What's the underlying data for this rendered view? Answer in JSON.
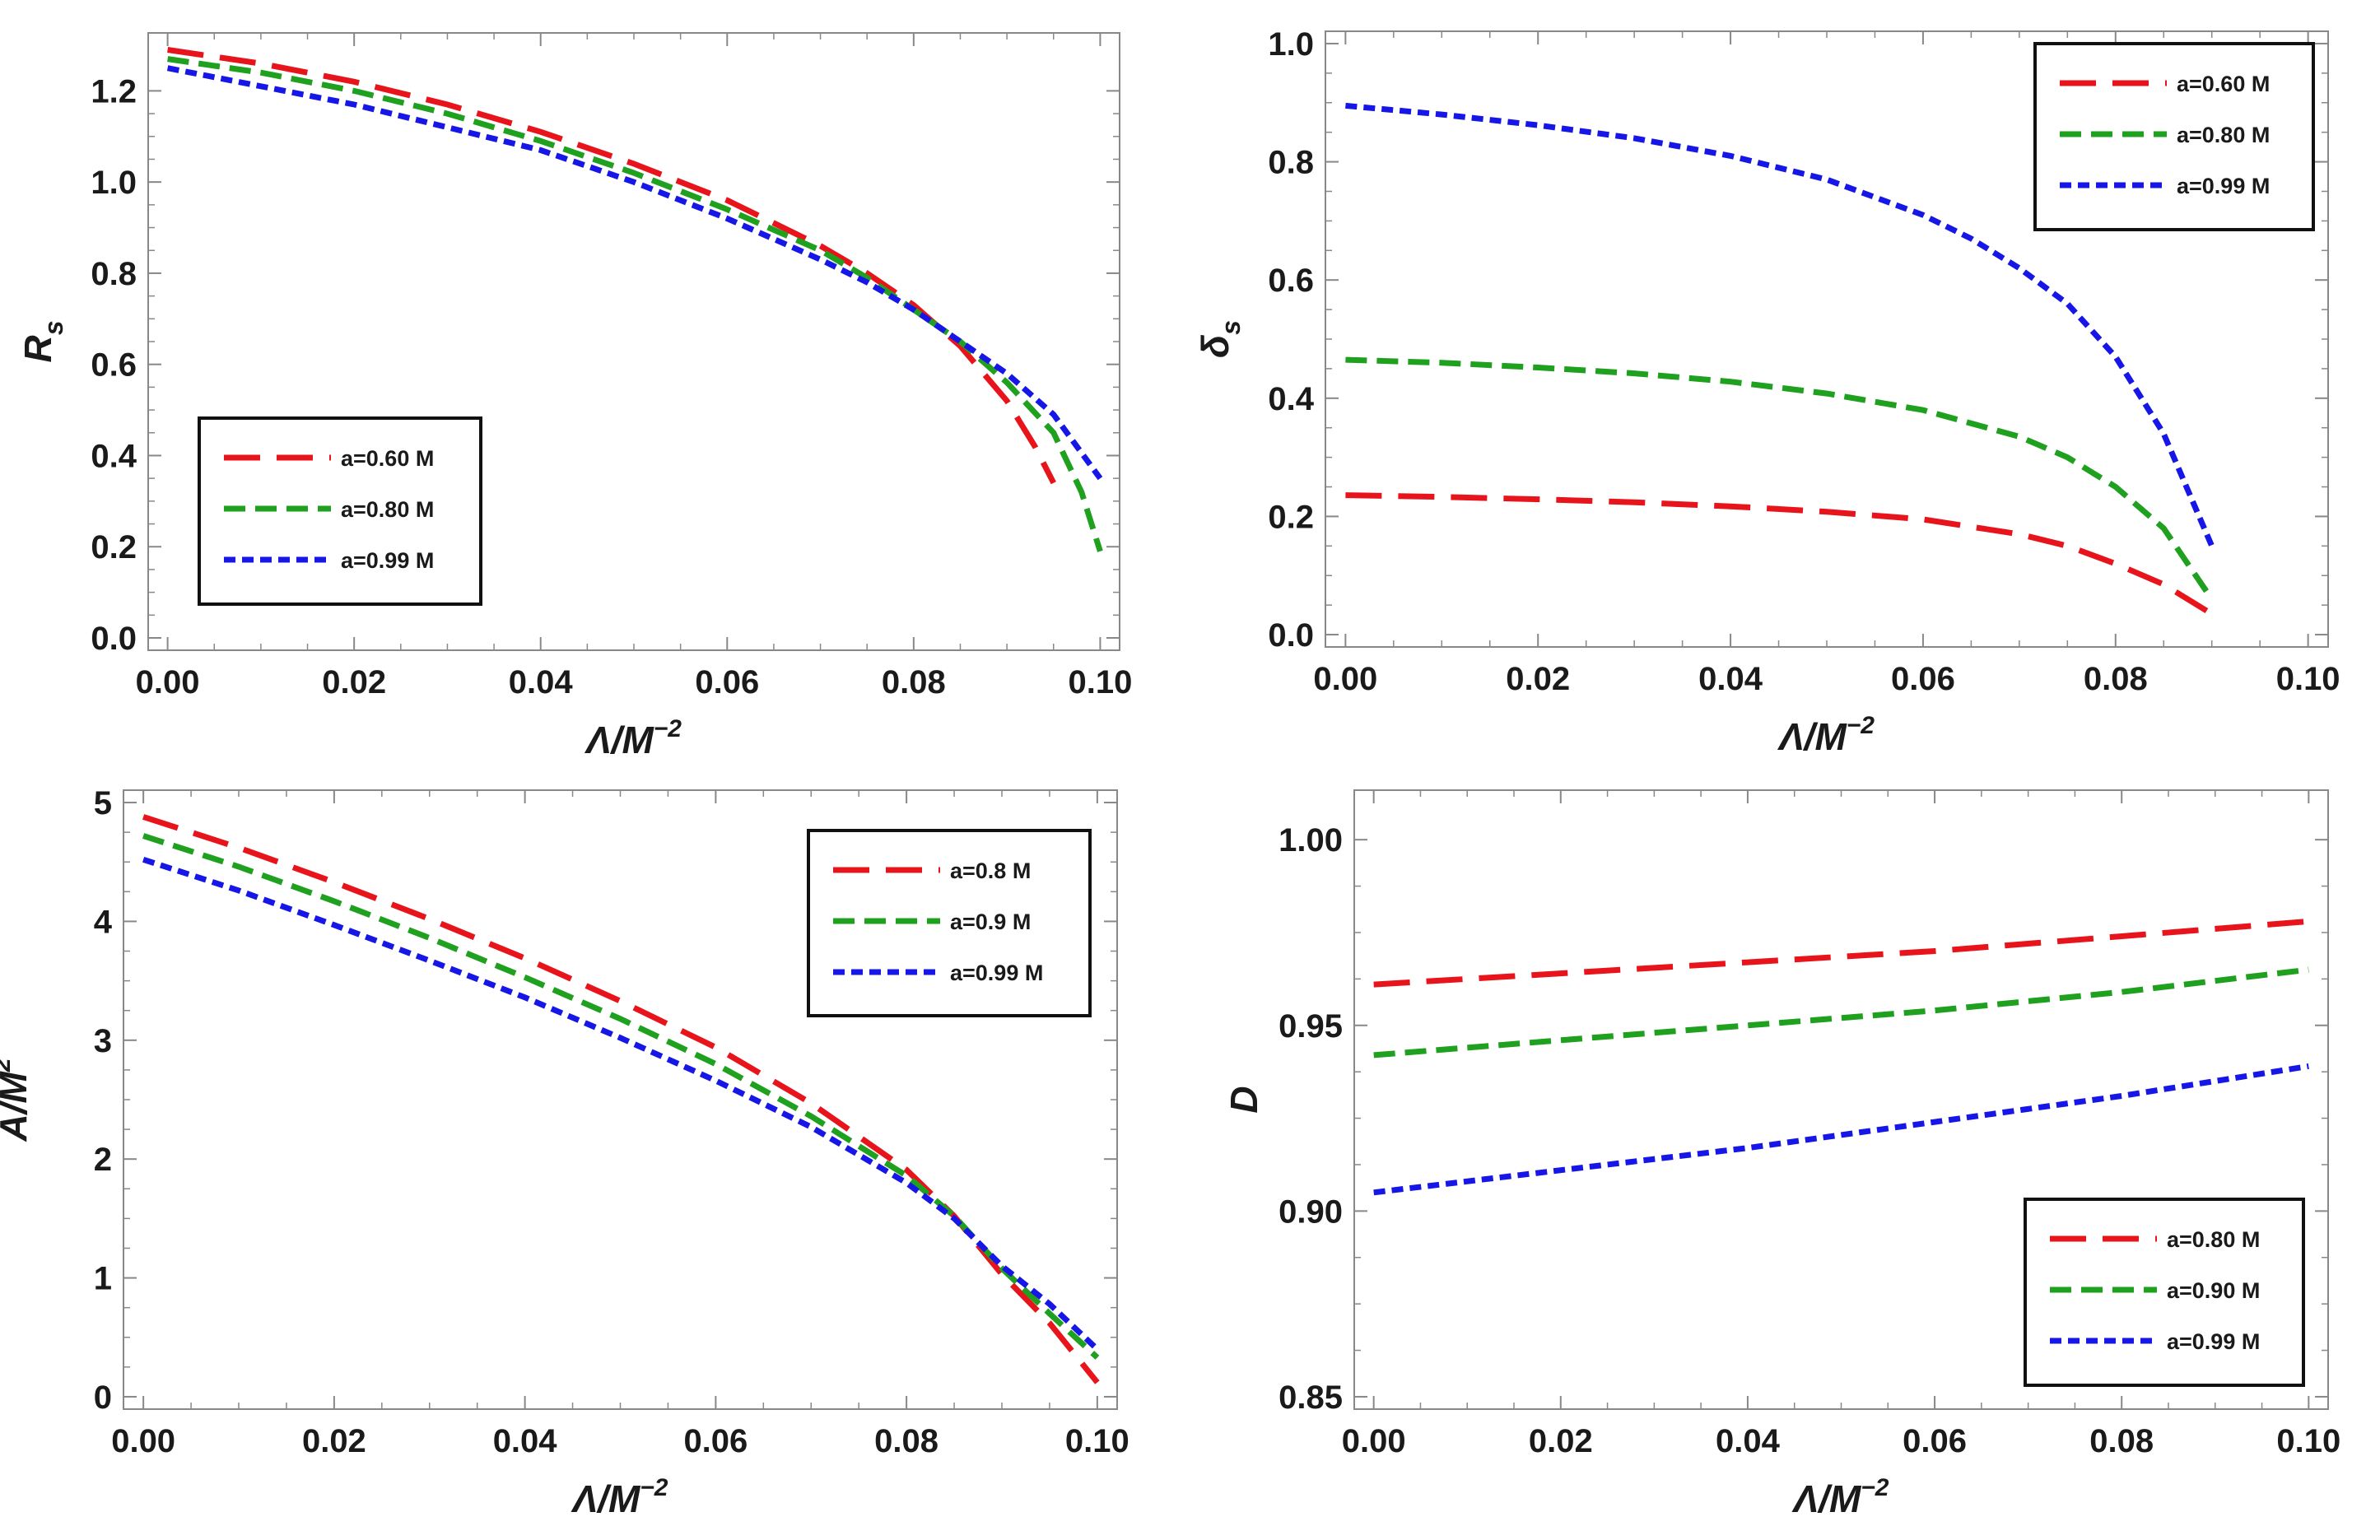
{
  "chart_data": [
    {
      "type": "line",
      "id": "rs",
      "xlabel": {
        "main": "Λ/M",
        "sup": "−2"
      },
      "ylabel": {
        "main": "R",
        "sub": "s"
      },
      "xlim": [
        0,
        0.1
      ],
      "ylim": [
        0,
        1.3
      ],
      "xticks": [
        "0.00",
        "0.02",
        "0.04",
        "0.06",
        "0.08",
        "0.10"
      ],
      "yticks": [
        "0.0",
        "0.2",
        "0.4",
        "0.6",
        "0.8",
        "1.0",
        "1.2"
      ],
      "legend": "bottom-left",
      "series": [
        {
          "name": "a=0.60 M",
          "color": "#e8141c",
          "dash": "long",
          "x": [
            0,
            0.01,
            0.02,
            0.03,
            0.04,
            0.05,
            0.06,
            0.07,
            0.075,
            0.08,
            0.085,
            0.09,
            0.093,
            0.095
          ],
          "y": [
            1.29,
            1.26,
            1.22,
            1.17,
            1.11,
            1.04,
            0.96,
            0.86,
            0.8,
            0.73,
            0.64,
            0.52,
            0.42,
            0.34
          ]
        },
        {
          "name": "a=0.80 M",
          "color": "#1fa01f",
          "dash": "medium",
          "x": [
            0,
            0.01,
            0.02,
            0.03,
            0.04,
            0.05,
            0.06,
            0.07,
            0.075,
            0.08,
            0.085,
            0.09,
            0.095,
            0.098,
            0.1
          ],
          "y": [
            1.27,
            1.24,
            1.2,
            1.15,
            1.09,
            1.02,
            0.94,
            0.85,
            0.79,
            0.72,
            0.65,
            0.56,
            0.45,
            0.32,
            0.19
          ]
        },
        {
          "name": "a=0.99 M",
          "color": "#1616e6",
          "dash": "short",
          "x": [
            0,
            0.01,
            0.02,
            0.03,
            0.04,
            0.05,
            0.06,
            0.07,
            0.075,
            0.08,
            0.085,
            0.09,
            0.095,
            0.1
          ],
          "y": [
            1.25,
            1.21,
            1.17,
            1.12,
            1.07,
            1.0,
            0.92,
            0.83,
            0.78,
            0.72,
            0.65,
            0.58,
            0.49,
            0.35
          ]
        }
      ]
    },
    {
      "type": "line",
      "id": "delta",
      "xlabel": {
        "main": "Λ/M",
        "sup": "−2"
      },
      "ylabel": {
        "main": "δ",
        "sub": "s"
      },
      "xlim": [
        0,
        0.1
      ],
      "ylim": [
        0,
        1.0
      ],
      "xticks": [
        "0.00",
        "0.02",
        "0.04",
        "0.06",
        "0.08",
        "0.10"
      ],
      "yticks": [
        "0.0",
        "0.2",
        "0.4",
        "0.6",
        "0.8",
        "1.0"
      ],
      "legend": "top-right",
      "series": [
        {
          "name": "a=0.60 M",
          "color": "#e8141c",
          "dash": "long",
          "x": [
            0,
            0.01,
            0.02,
            0.03,
            0.04,
            0.05,
            0.06,
            0.07,
            0.075,
            0.08,
            0.085,
            0.09
          ],
          "y": [
            0.236,
            0.233,
            0.229,
            0.224,
            0.217,
            0.208,
            0.195,
            0.17,
            0.15,
            0.12,
            0.085,
            0.035
          ]
        },
        {
          "name": "a=0.80 M",
          "color": "#1fa01f",
          "dash": "medium",
          "x": [
            0,
            0.01,
            0.02,
            0.03,
            0.04,
            0.05,
            0.06,
            0.07,
            0.075,
            0.08,
            0.085,
            0.09
          ],
          "y": [
            0.465,
            0.46,
            0.452,
            0.442,
            0.428,
            0.408,
            0.38,
            0.335,
            0.3,
            0.25,
            0.18,
            0.06
          ]
        },
        {
          "name": "a=0.99 M",
          "color": "#1616e6",
          "dash": "short",
          "x": [
            0,
            0.01,
            0.02,
            0.03,
            0.04,
            0.05,
            0.06,
            0.065,
            0.07,
            0.075,
            0.08,
            0.085,
            0.09
          ],
          "y": [
            0.895,
            0.88,
            0.862,
            0.84,
            0.81,
            0.77,
            0.71,
            0.67,
            0.62,
            0.56,
            0.47,
            0.34,
            0.15
          ]
        }
      ]
    },
    {
      "type": "line",
      "id": "area",
      "xlabel": {
        "main": "Λ/M",
        "sup": "−2"
      },
      "ylabel": {
        "main": "A/M",
        "sup": "2"
      },
      "xlim": [
        0,
        0.1
      ],
      "ylim": [
        0,
        5
      ],
      "xticks": [
        "0.00",
        "0.02",
        "0.04",
        "0.06",
        "0.08",
        "0.10"
      ],
      "yticks": [
        "0",
        "1",
        "2",
        "3",
        "4",
        "5"
      ],
      "legend": "top-right",
      "series": [
        {
          "name": "a=0.8 M",
          "color": "#e8141c",
          "dash": "long",
          "x": [
            0,
            0.01,
            0.02,
            0.03,
            0.04,
            0.05,
            0.06,
            0.07,
            0.08,
            0.085,
            0.09,
            0.095,
            0.1
          ],
          "y": [
            4.88,
            4.62,
            4.33,
            4.02,
            3.69,
            3.33,
            2.94,
            2.47,
            1.91,
            1.52,
            1.03,
            0.62,
            0.12
          ]
        },
        {
          "name": "a=0.9 M",
          "color": "#1fa01f",
          "dash": "medium",
          "x": [
            0,
            0.01,
            0.02,
            0.03,
            0.04,
            0.05,
            0.06,
            0.07,
            0.08,
            0.085,
            0.09,
            0.095,
            0.1
          ],
          "y": [
            4.72,
            4.46,
            4.17,
            3.86,
            3.53,
            3.18,
            2.8,
            2.36,
            1.86,
            1.52,
            1.08,
            0.7,
            0.33
          ]
        },
        {
          "name": "a=0.99 M",
          "color": "#1616e6",
          "dash": "short",
          "x": [
            0,
            0.01,
            0.02,
            0.03,
            0.04,
            0.05,
            0.06,
            0.07,
            0.08,
            0.085,
            0.09,
            0.095,
            0.1
          ],
          "y": [
            4.52,
            4.26,
            3.97,
            3.67,
            3.36,
            3.02,
            2.66,
            2.27,
            1.8,
            1.5,
            1.1,
            0.78,
            0.4
          ]
        }
      ]
    },
    {
      "type": "line",
      "id": "D",
      "xlabel": {
        "main": "Λ/M",
        "sup": "−2"
      },
      "ylabel": {
        "main": "D"
      },
      "xlim": [
        0,
        0.1
      ],
      "ylim": [
        0.85,
        1.01
      ],
      "xticks": [
        "0.00",
        "0.02",
        "0.04",
        "0.06",
        "0.08",
        "0.10"
      ],
      "yticks": [
        "0.85",
        "0.90",
        "0.95",
        "1.00"
      ],
      "legend": "bottom-right",
      "series": [
        {
          "name": "a=0.80 M",
          "color": "#e8141c",
          "dash": "long",
          "x": [
            0,
            0.02,
            0.04,
            0.06,
            0.08,
            0.1
          ],
          "y": [
            0.961,
            0.964,
            0.967,
            0.97,
            0.974,
            0.978
          ]
        },
        {
          "name": "a=0.90 M",
          "color": "#1fa01f",
          "dash": "medium",
          "x": [
            0,
            0.02,
            0.04,
            0.06,
            0.08,
            0.1
          ],
          "y": [
            0.942,
            0.946,
            0.95,
            0.954,
            0.959,
            0.965
          ]
        },
        {
          "name": "a=0.99 M",
          "color": "#1616e6",
          "dash": "short",
          "x": [
            0,
            0.02,
            0.04,
            0.06,
            0.08,
            0.1
          ],
          "y": [
            0.905,
            0.911,
            0.917,
            0.924,
            0.931,
            0.939
          ]
        }
      ]
    }
  ]
}
